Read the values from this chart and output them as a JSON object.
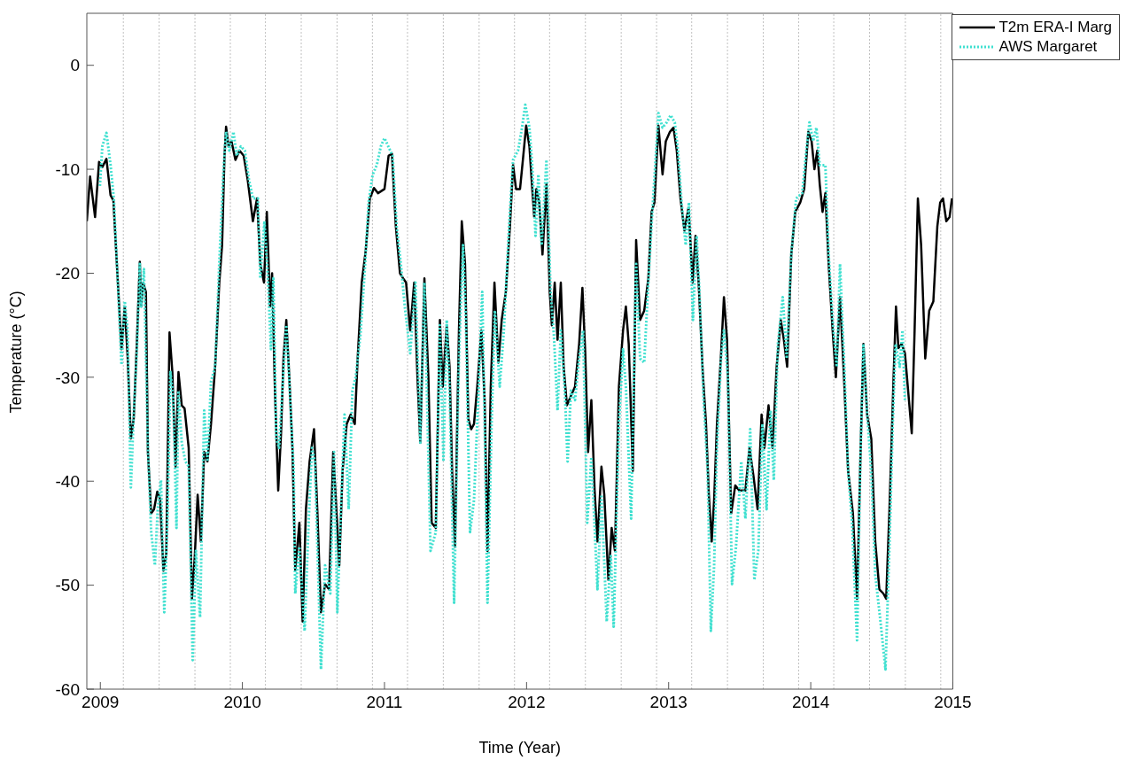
{
  "chart_data": {
    "type": "line",
    "xlabel": "Time (Year)",
    "ylabel": "Temperature (°C)",
    "xlim": [
      2008.905,
      2015
    ],
    "xticks": [
      2009,
      2010,
      2011,
      2012,
      2013,
      2014,
      2015
    ],
    "ylim": [
      -60,
      5
    ],
    "yticks": [
      -60,
      -50,
      -40,
      -30,
      -20,
      -10,
      0
    ],
    "grid": false,
    "legend": "top right",
    "ref_lines": [
      {
        "axis": "x",
        "value": 2009.162,
        "color": "#c0c0c0",
        "line_style": "dotted"
      },
      {
        "axis": "x",
        "value": 2009.414,
        "color": "#c0c0c0",
        "line_style": "dotted"
      },
      {
        "axis": "x",
        "value": 2009.666,
        "color": "#c0c0c0",
        "line_style": "dotted"
      },
      {
        "axis": "x",
        "value": 2009.915,
        "color": "#c0c0c0",
        "line_style": "dotted"
      },
      {
        "axis": "x",
        "value": 2010.162,
        "color": "#c0c0c0",
        "line_style": "dotted"
      },
      {
        "axis": "x",
        "value": 2010.414,
        "color": "#c0c0c0",
        "line_style": "dotted"
      },
      {
        "axis": "x",
        "value": 2010.666,
        "color": "#c0c0c0",
        "line_style": "dotted"
      },
      {
        "axis": "x",
        "value": 2010.915,
        "color": "#c0c0c0",
        "line_style": "dotted"
      },
      {
        "axis": "x",
        "value": 2011.162,
        "color": "#c0c0c0",
        "line_style": "dotted"
      },
      {
        "axis": "x",
        "value": 2011.414,
        "color": "#c0c0c0",
        "line_style": "dotted"
      },
      {
        "axis": "x",
        "value": 2011.666,
        "color": "#c0c0c0",
        "line_style": "dotted"
      },
      {
        "axis": "x",
        "value": 2011.915,
        "color": "#c0c0c0",
        "line_style": "dotted"
      },
      {
        "axis": "x",
        "value": 2012.162,
        "color": "#c0c0c0",
        "line_style": "dotted"
      },
      {
        "axis": "x",
        "value": 2012.414,
        "color": "#c0c0c0",
        "line_style": "dotted"
      },
      {
        "axis": "x",
        "value": 2012.666,
        "color": "#c0c0c0",
        "line_style": "dotted"
      },
      {
        "axis": "x",
        "value": 2012.915,
        "color": "#c0c0c0",
        "line_style": "dotted"
      },
      {
        "axis": "x",
        "value": 2013.162,
        "color": "#c0c0c0",
        "line_style": "dotted"
      },
      {
        "axis": "x",
        "value": 2013.414,
        "color": "#c0c0c0",
        "line_style": "dotted"
      },
      {
        "axis": "x",
        "value": 2013.666,
        "color": "#c0c0c0",
        "line_style": "dotted"
      },
      {
        "axis": "x",
        "value": 2013.915,
        "color": "#c0c0c0",
        "line_style": "dotted"
      },
      {
        "axis": "x",
        "value": 2014.162,
        "color": "#c0c0c0",
        "line_style": "dotted"
      },
      {
        "axis": "x",
        "value": 2014.414,
        "color": "#c0c0c0",
        "line_style": "dotted"
      },
      {
        "axis": "x",
        "value": 2014.666,
        "color": "#c0c0c0",
        "line_style": "dotted"
      },
      {
        "axis": "x",
        "value": 2014.915,
        "color": "#c0c0c0",
        "line_style": "dotted"
      }
    ],
    "series": [
      {
        "name": "T2m ERA-I Marg",
        "color": "#000000",
        "line_style": "solid",
        "x": [
          2008.905,
          2008.928,
          2008.963,
          2008.991,
          2009.014,
          2009.043,
          2009.072,
          2009.092,
          2009.12,
          2009.149,
          2009.172,
          2009.192,
          2009.215,
          2009.235,
          2009.258,
          2009.278,
          2009.287,
          2009.301,
          2009.321,
          2009.335,
          2009.358,
          2009.378,
          2009.401,
          2009.421,
          2009.444,
          2009.464,
          2009.487,
          2009.507,
          2009.53,
          2009.55,
          2009.573,
          2009.593,
          2009.622,
          2009.645,
          2009.665,
          2009.685,
          2009.708,
          2009.731,
          2009.754,
          2009.779,
          2009.808,
          2009.837,
          2009.857,
          2009.874,
          2009.885,
          2009.903,
          2009.923,
          2009.951,
          2009.98,
          2010.009,
          2010.037,
          2010.074,
          2010.103,
          2010.126,
          2010.152,
          2010.172,
          2010.195,
          2010.209,
          2010.229,
          2010.252,
          2010.272,
          2010.289,
          2010.309,
          2010.33,
          2010.352,
          2010.372,
          2010.401,
          2010.424,
          2010.447,
          2010.473,
          2010.504,
          2010.527,
          2010.553,
          2010.582,
          2010.61,
          2010.639,
          2010.665,
          2010.682,
          2010.705,
          2010.734,
          2010.762,
          2010.791,
          2010.811,
          2010.84,
          2010.868,
          2010.897,
          2010.926,
          2010.954,
          2011,
          2011.029,
          2011.052,
          2011.08,
          2011.109,
          2011.132,
          2011.152,
          2011.181,
          2011.209,
          2011.232,
          2011.252,
          2011.281,
          2011.309,
          2011.332,
          2011.361,
          2011.39,
          2011.41,
          2011.438,
          2011.458,
          2011.476,
          2011.496,
          2011.524,
          2011.544,
          2011.567,
          2011.59,
          2011.61,
          2011.63,
          2011.653,
          2011.682,
          2011.705,
          2011.725,
          2011.748,
          2011.774,
          2011.802,
          2011.825,
          2011.854,
          2011.883,
          2011.905,
          2011.926,
          2011.954,
          2011.974,
          2011.997,
          2012.02,
          2012.04,
          2012.054,
          2012.069,
          2012.089,
          2012.112,
          2012.14,
          2012.163,
          2012.178,
          2012.198,
          2012.218,
          2012.241,
          2012.261,
          2012.284,
          2012.312,
          2012.341,
          2012.37,
          2012.393,
          2012.413,
          2012.433,
          2012.456,
          2012.479,
          2012.499,
          2012.527,
          2012.547,
          2012.576,
          2012.599,
          2012.622,
          2012.65,
          2012.679,
          2012.699,
          2012.719,
          2012.748,
          2012.771,
          2012.799,
          2012.828,
          2012.857,
          2012.88,
          2012.9,
          2012.928,
          2012.957,
          2012.98,
          2013.009,
          2013.034,
          2013.057,
          2013.083,
          2013.111,
          2013.14,
          2013.169,
          2013.189,
          2013.211,
          2013.24,
          2013.263,
          2013.283,
          2013.303,
          2013.32,
          2013.34,
          2013.369,
          2013.389,
          2013.411,
          2013.44,
          2013.469,
          2013.497,
          2013.54,
          2013.569,
          2013.597,
          2013.626,
          2013.654,
          2013.674,
          2013.703,
          2013.731,
          2013.76,
          2013.789,
          2013.811,
          2013.834,
          2013.863,
          2013.891,
          2013.926,
          2013.954,
          2013.983,
          2014.006,
          2014.026,
          2014.046,
          2014.063,
          2014.083,
          2014.103,
          2014.126,
          2014.154,
          2014.177,
          2014.206,
          2014.234,
          2014.263,
          2014.297,
          2014.326,
          2014.354,
          2014.371,
          2014.397,
          2014.426,
          2014.454,
          2014.483,
          2014.511,
          2014.531,
          2014.554,
          2014.583,
          2014.6,
          2014.617,
          2014.64,
          2014.663,
          2014.683,
          2014.711,
          2014.731,
          2014.754,
          2014.777,
          2014.806,
          2014.834,
          2014.863,
          2014.891,
          2014.911,
          2014.931,
          2014.954,
          2014.977,
          2014.994
        ],
        "values": [
          -15,
          -10.7,
          -14.6,
          -9.3,
          -9.8,
          -9,
          -12.5,
          -13,
          -20,
          -27.3,
          -23.2,
          -28,
          -35.9,
          -34,
          -26.4,
          -18.9,
          -23.2,
          -20.9,
          -21.8,
          -37.2,
          -43.1,
          -42.7,
          -41,
          -41.7,
          -48.6,
          -47,
          -25.7,
          -29.5,
          -38.6,
          -29.5,
          -32.7,
          -33,
          -36.8,
          -51.3,
          -47.2,
          -41.3,
          -45.8,
          -37.2,
          -38.1,
          -34.5,
          -29,
          -21,
          -17.3,
          -8.7,
          -5.9,
          -7.8,
          -7.3,
          -9.1,
          -8.2,
          -8.7,
          -11,
          -15,
          -12.8,
          -19.1,
          -20.9,
          -14.1,
          -23.2,
          -20,
          -31.3,
          -40.9,
          -35.4,
          -28.2,
          -24.5,
          -30,
          -36.8,
          -48.6,
          -44,
          -53.5,
          -42.7,
          -38.1,
          -35,
          -42.7,
          -52.6,
          -49.9,
          -50.4,
          -37.2,
          -43.6,
          -48.1,
          -39,
          -34.5,
          -33.6,
          -34.5,
          -28.2,
          -20.9,
          -17.8,
          -12.8,
          -11.8,
          -12.3,
          -11.9,
          -8.7,
          -8.5,
          -15.5,
          -20,
          -20.5,
          -20.9,
          -25.5,
          -20.9,
          -30,
          -36.3,
          -20.5,
          -30,
          -44,
          -44.5,
          -24.5,
          -30.9,
          -25,
          -29,
          -39,
          -46.3,
          -25.5,
          -15,
          -19.1,
          -34,
          -35,
          -34.5,
          -30.9,
          -25.5,
          -32.2,
          -46.7,
          -30.9,
          -20.9,
          -28.6,
          -24.5,
          -21.8,
          -15.5,
          -9.6,
          -11.9,
          -11.9,
          -9.1,
          -5.8,
          -7.8,
          -11.9,
          -14.6,
          -11.9,
          -13.2,
          -18.2,
          -11.4,
          -21.8,
          -25,
          -20.9,
          -26.4,
          -20.9,
          -29,
          -32.7,
          -31.8,
          -30.9,
          -26.8,
          -21.4,
          -27.7,
          -37.2,
          -32.2,
          -40.9,
          -45.8,
          -38.6,
          -41.3,
          -49.5,
          -44.5,
          -46.7,
          -30.9,
          -25.5,
          -23.2,
          -26.8,
          -39,
          -16.8,
          -24.5,
          -23.6,
          -20.5,
          -14.1,
          -13.2,
          -5.8,
          -10.5,
          -7.3,
          -6.4,
          -6,
          -8.2,
          -12.8,
          -15.9,
          -13.7,
          -20.9,
          -16.4,
          -20.9,
          -29.5,
          -34.5,
          -41.3,
          -45.8,
          -41.8,
          -34.5,
          -27.7,
          -22.3,
          -26.4,
          -43.1,
          -40.4,
          -40.9,
          -40.9,
          -36.8,
          -39.5,
          -42.7,
          -33.6,
          -36.8,
          -32.7,
          -36.8,
          -29,
          -24.5,
          -26.4,
          -29,
          -18.2,
          -14.1,
          -13.2,
          -11.9,
          -6.4,
          -7.3,
          -10,
          -8.2,
          -11.4,
          -14.1,
          -12.3,
          -19.1,
          -25.5,
          -30,
          -22.3,
          -30,
          -39,
          -43.1,
          -51.3,
          -35.4,
          -26.8,
          -33.6,
          -35.9,
          -45.8,
          -50.4,
          -50.8,
          -51.3,
          -42.7,
          -30,
          -23.2,
          -27.2,
          -26.8,
          -27.7,
          -30.9,
          -35.4,
          -25.5,
          -12.8,
          -17.3,
          -28.2,
          -23.6,
          -22.7,
          -15.5,
          -13.2,
          -12.8,
          -15,
          -14.6,
          -12.8
        ]
      },
      {
        "name": "AWS Margaret",
        "color": "#40e0d0",
        "line_style": "dotted",
        "x": [
          2008.997,
          2009.014,
          2009.043,
          2009.072,
          2009.095,
          2009.12,
          2009.149,
          2009.172,
          2009.192,
          2009.215,
          2009.235,
          2009.258,
          2009.278,
          2009.287,
          2009.307,
          2009.335,
          2009.358,
          2009.384,
          2009.404,
          2009.427,
          2009.45,
          2009.473,
          2009.493,
          2009.513,
          2009.536,
          2009.55,
          2009.573,
          2009.599,
          2009.622,
          2009.65,
          2009.673,
          2009.702,
          2009.731,
          2009.754,
          2009.779,
          2009.808,
          2009.837,
          2009.865,
          2009.885,
          2009.908,
          2009.937,
          2009.96,
          2009.989,
          2010.017,
          2010.046,
          2010.074,
          2010.109,
          2010.126,
          2010.155,
          2010.178,
          2010.201,
          2010.218,
          2010.238,
          2010.258,
          2010.281,
          2010.309,
          2010.332,
          2010.361,
          2010.372,
          2010.401,
          2010.438,
          2010.467,
          2010.49,
          2010.51,
          2010.553,
          2010.582,
          2010.619,
          2010.645,
          2010.668,
          2010.696,
          2010.719,
          2010.748,
          2010.774,
          2010.797,
          2010.831,
          2010.86,
          2010.888,
          2010.917,
          2010.946,
          2010.974,
          2011,
          2011.057,
          2011.086,
          2011.115,
          2011.143,
          2011.181,
          2011.218,
          2011.252,
          2011.281,
          2011.324,
          2011.361,
          2011.39,
          2011.415,
          2011.438,
          2011.458,
          2011.49,
          2011.524,
          2011.553,
          2011.573,
          2011.602,
          2011.63,
          2011.662,
          2011.688,
          2011.705,
          2011.725,
          2011.754,
          2011.777,
          2011.811,
          2011.84,
          2011.877,
          2011.905,
          2011.94,
          2011.968,
          2011.991,
          2012.02,
          2012.04,
          2012.063,
          2012.083,
          2012.106,
          2012.14,
          2012.169,
          2012.192,
          2012.218,
          2012.241,
          2012.269,
          2012.289,
          2012.312,
          2012.341,
          2012.37,
          2012.398,
          2012.427,
          2012.456,
          2012.499,
          2012.527,
          2012.564,
          2012.593,
          2012.613,
          2012.65,
          2012.679,
          2012.699,
          2012.736,
          2012.771,
          2012.799,
          2012.828,
          2012.857,
          2012.885,
          2012.928,
          2012.957,
          2012.986,
          2013.014,
          2013.043,
          2013.066,
          2013.091,
          2013.12,
          2013.143,
          2013.171,
          2013.197,
          2013.217,
          2013.246,
          2013.274,
          2013.297,
          2013.32,
          2013.34,
          2013.369,
          2013.389,
          2013.417,
          2013.446,
          2013.474,
          2013.511,
          2013.54,
          2013.574,
          2013.603,
          2013.631,
          2013.66,
          2013.689,
          2013.717,
          2013.74,
          2013.769,
          2013.803,
          2013.831,
          2013.863,
          2013.897,
          2013.94,
          2013.969,
          2013.991,
          2014.017,
          2014.04,
          2014.063,
          2014.103,
          2014.126,
          2014.154,
          2014.183,
          2014.206,
          2014.234,
          2014.263,
          2014.291,
          2014.326,
          2014.349,
          2014.371,
          2014.397,
          2014.426,
          2014.454,
          2014.491,
          2014.526,
          2014.554,
          2014.577,
          2014.597,
          2014.626,
          2014.646,
          2014.663
        ],
        "values": [
          -11.6,
          -7.8,
          -6.5,
          -9.6,
          -12.8,
          -20,
          -28.8,
          -22.7,
          -25.5,
          -40.6,
          -33.6,
          -27.3,
          -19.1,
          -23.2,
          -19.6,
          -36.8,
          -44.9,
          -48.1,
          -42.7,
          -39.9,
          -52.6,
          -43.6,
          -29.5,
          -31.8,
          -44.5,
          -31.3,
          -36.3,
          -38.1,
          -38.6,
          -57.2,
          -46.7,
          -53.1,
          -33.2,
          -38.1,
          -30.4,
          -29,
          -19.1,
          -10.5,
          -6.4,
          -8.2,
          -6.4,
          -8.7,
          -7.8,
          -8.2,
          -11,
          -12.8,
          -12.8,
          -20.5,
          -15,
          -20,
          -27.3,
          -20.5,
          -35.9,
          -36.8,
          -31.3,
          -25,
          -30.9,
          -39,
          -50.8,
          -46.3,
          -54.4,
          -43.6,
          -36.8,
          -38.1,
          -58.1,
          -48.1,
          -50.8,
          -37.2,
          -52.6,
          -41.8,
          -33.6,
          -42.7,
          -31.3,
          -30,
          -25.9,
          -20,
          -13.2,
          -10.5,
          -9.6,
          -7.8,
          -7,
          -8.7,
          -15.5,
          -19.1,
          -23.2,
          -27.7,
          -20.9,
          -36.3,
          -20.9,
          -46.7,
          -44.9,
          -25,
          -38.1,
          -24.5,
          -30.9,
          -51.7,
          -28.2,
          -17.3,
          -24.5,
          -44.9,
          -41.8,
          -31.3,
          -21.8,
          -34.5,
          -51.7,
          -34.5,
          -23.6,
          -30.9,
          -25.5,
          -15.5,
          -9.1,
          -8.2,
          -6,
          -3.8,
          -6,
          -9.6,
          -16.4,
          -10.5,
          -17.3,
          -9.1,
          -21.8,
          -25.9,
          -33.2,
          -25.5,
          -31.3,
          -38.1,
          -31.3,
          -32.2,
          -28.2,
          -25.5,
          -44,
          -37.7,
          -50.4,
          -41.3,
          -53.5,
          -47.2,
          -54,
          -34.5,
          -27.3,
          -30.9,
          -43.6,
          -19.1,
          -28.2,
          -28.6,
          -20.9,
          -14.1,
          -4.6,
          -6,
          -5.5,
          -4.8,
          -5.5,
          -8.2,
          -13.2,
          -17.3,
          -13.2,
          -24.5,
          -16.4,
          -21.8,
          -32.2,
          -39,
          -54.4,
          -48.1,
          -36.8,
          -28.2,
          -25.5,
          -30,
          -49.9,
          -46.3,
          -38.1,
          -43.6,
          -35,
          -49.5,
          -46.7,
          -34.5,
          -42.7,
          -33.2,
          -39.9,
          -26.8,
          -22.3,
          -28.2,
          -18.2,
          -12.8,
          -12.3,
          -8.2,
          -5.5,
          -7.3,
          -6,
          -9.6,
          -9.6,
          -18.2,
          -24.5,
          -29,
          -19.1,
          -28.2,
          -39,
          -44,
          -55.3,
          -38.1,
          -26.8,
          -33.6,
          -39,
          -49,
          -53.5,
          -58.1,
          -46.3,
          -34.5,
          -26.8,
          -29,
          -25.5,
          -32.2
        ]
      }
    ]
  }
}
